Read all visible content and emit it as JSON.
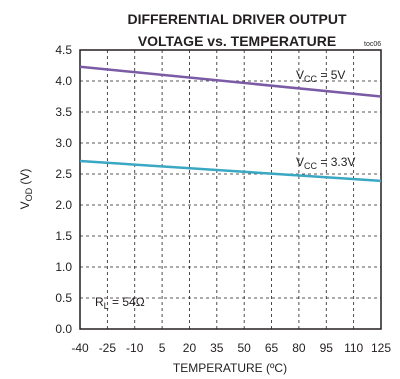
{
  "chart_data": {
    "type": "line",
    "title_line1": "DIFFERENTIAL DRIVER OUTPUT",
    "title_line2": "VOLTAGE vs. TEMPERATURE",
    "figure_id": "toc06",
    "xlabel": "TEMPERATURE (ºC)",
    "ylabel": {
      "main": "V",
      "sub": "OD",
      "unit": " (V)"
    },
    "x_ticks": [
      "-40",
      "-25",
      "-10",
      "5",
      "20",
      "35",
      "50",
      "65",
      "80",
      "95",
      "110",
      "125"
    ],
    "y_ticks": [
      "0.0",
      "0.5",
      "1.0",
      "1.5",
      "2.0",
      "2.5",
      "3.0",
      "3.5",
      "4.0",
      "4.5"
    ],
    "xlim": [
      -40,
      125
    ],
    "ylim": [
      0,
      4.5
    ],
    "grid": "dashed",
    "series": [
      {
        "label": {
          "main": "V",
          "sub": "CC",
          "suffix": " = 5V"
        },
        "color": "#7b5aa6",
        "x": [
          -40,
          125
        ],
        "y": [
          4.23,
          3.75
        ]
      },
      {
        "label": {
          "main": "V",
          "sub": "CC",
          "suffix": " = 3.3V"
        },
        "color": "#3aa7c3",
        "x": [
          -40,
          125
        ],
        "y": [
          2.71,
          2.39
        ]
      }
    ],
    "annotation": {
      "main": "R",
      "sub": "L",
      "suffix": " = 54Ω"
    }
  }
}
